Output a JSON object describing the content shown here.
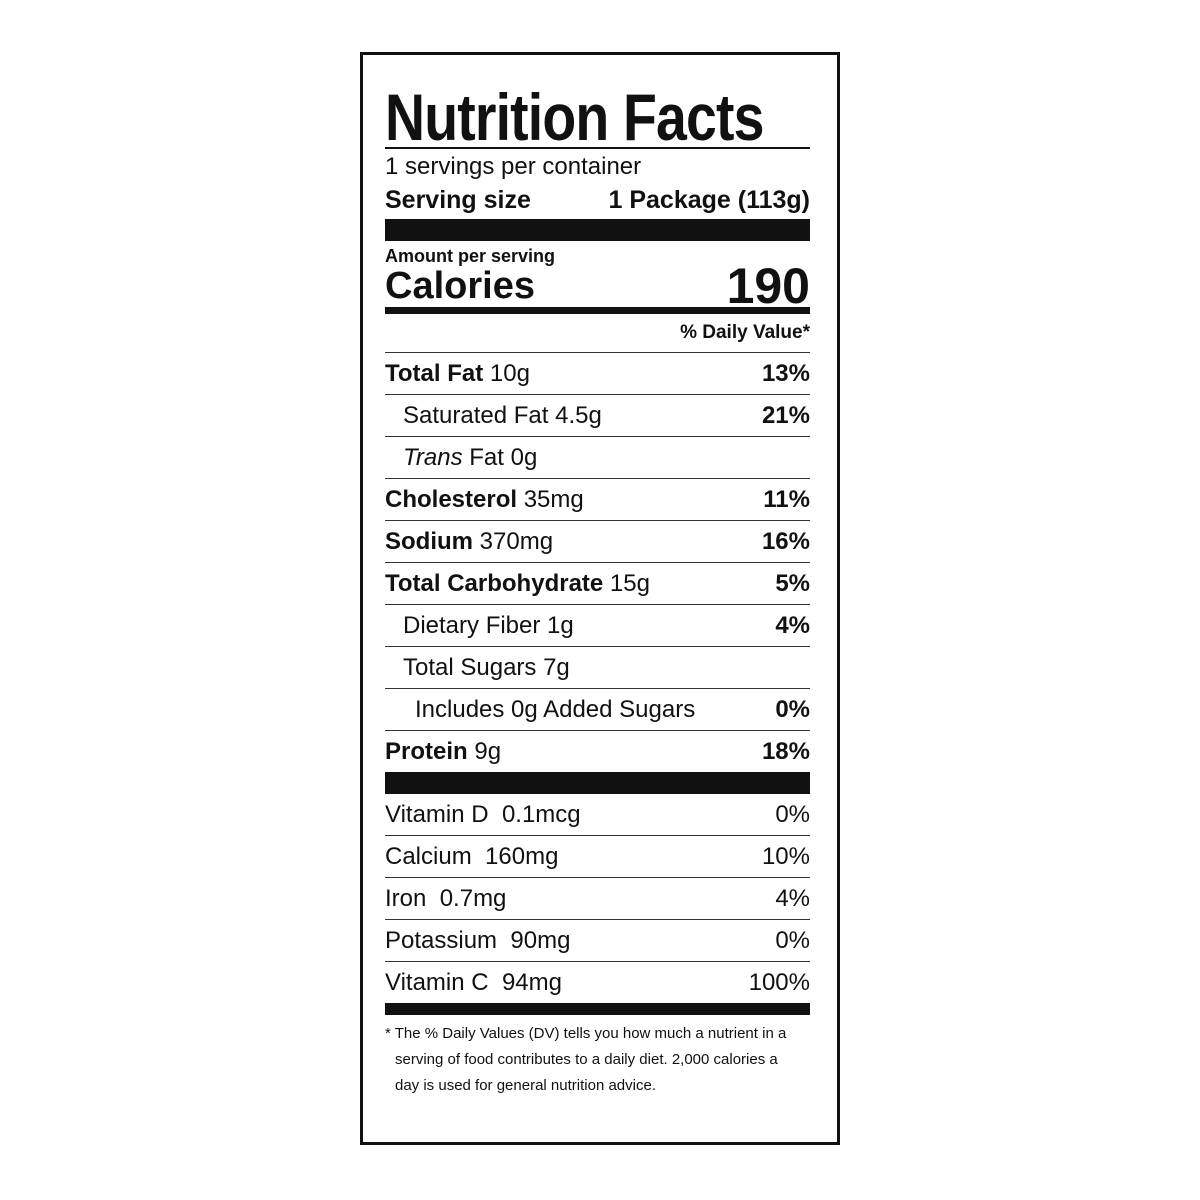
{
  "title": "Nutrition Facts",
  "servings_per_container": "1 servings per container",
  "serving_size_label": "Serving size",
  "serving_size_value": "1 Package (113g)",
  "amount_per_serving": "Amount per serving",
  "calories_label": "Calories",
  "calories_value": "190",
  "daily_value_header": "% Daily Value*",
  "nutrients": [
    {
      "name": "Total Fat",
      "amount": "10g",
      "dv": "13%"
    },
    {
      "name": "Saturated Fat",
      "amount": "4.5g",
      "dv": "21%"
    },
    {
      "name_italic": "Trans",
      "name": "Fat",
      "amount": "0g",
      "dv": ""
    },
    {
      "name": "Cholesterol",
      "amount": "35mg",
      "dv": "11%"
    },
    {
      "name": "Sodium",
      "amount": "370mg",
      "dv": "16%"
    },
    {
      "name": "Total Carbohydrate",
      "amount": "15g",
      "dv": "5%"
    },
    {
      "name": "Dietary Fiber",
      "amount": "1g",
      "dv": "4%"
    },
    {
      "name": "Total Sugars",
      "amount": "7g",
      "dv": ""
    },
    {
      "name": "Includes 0g Added Sugars",
      "amount": "",
      "dv": "0%"
    },
    {
      "name": "Protein",
      "amount": "9g",
      "dv": "18%"
    }
  ],
  "vitamins": [
    {
      "name": "Vitamin D",
      "amount": "0.1mcg",
      "dv": "0%"
    },
    {
      "name": "Calcium",
      "amount": "160mg",
      "dv": "10%"
    },
    {
      "name": "Iron",
      "amount": "0.7mg",
      "dv": "4%"
    },
    {
      "name": "Potassium",
      "amount": "90mg",
      "dv": "0%"
    },
    {
      "name": "Vitamin C",
      "amount": "94mg",
      "dv": "100%"
    }
  ],
  "footnote": [
    "* The % Daily Values (DV) tells you how much a nutrient in a",
    "serving of food contributes to a daily diet. 2,000 calories a",
    "day is used for general nutrition advice."
  ]
}
